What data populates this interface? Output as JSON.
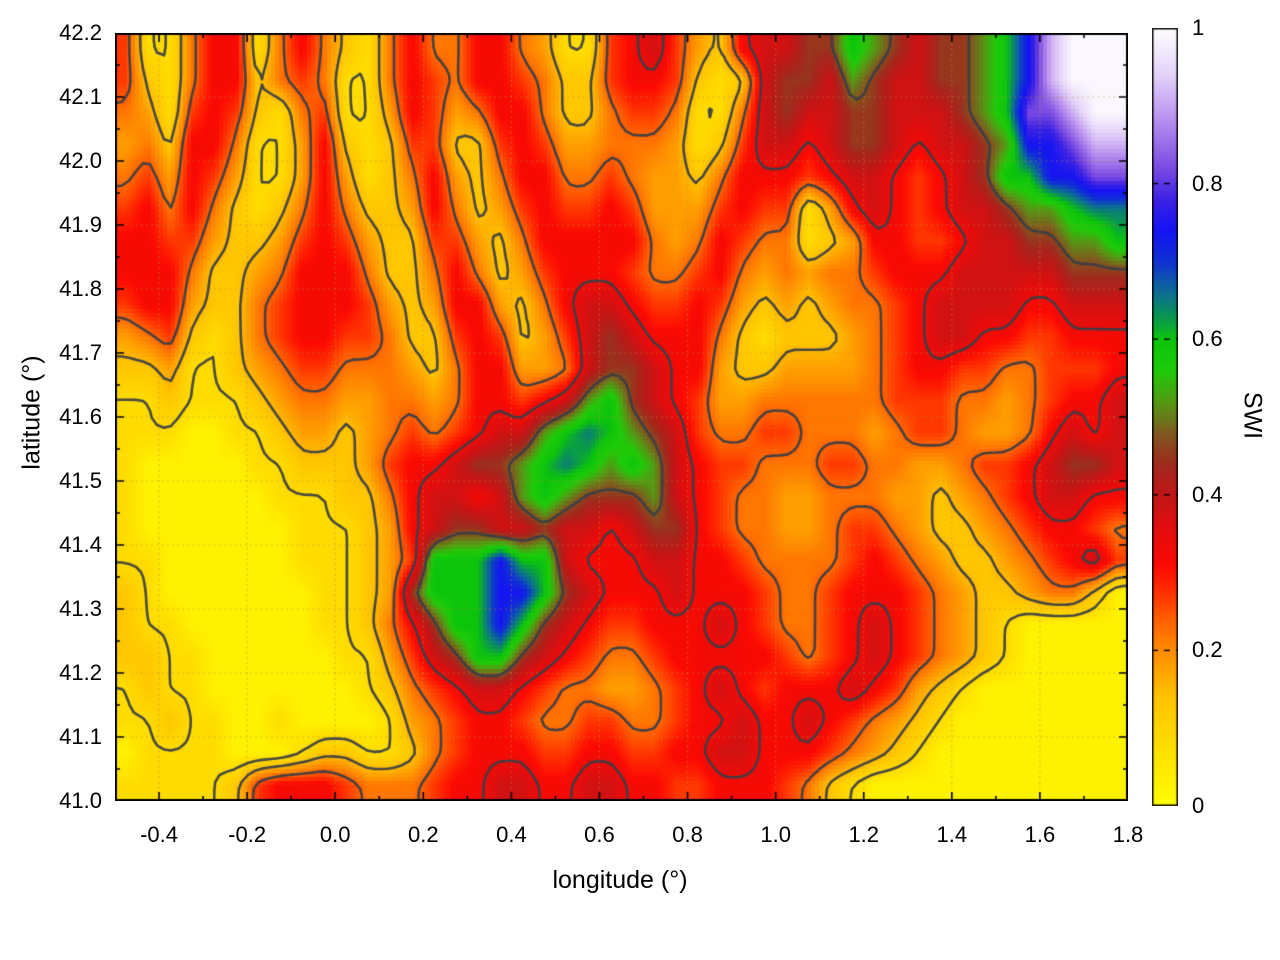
{
  "chart_data": {
    "type": "heatmap",
    "title": "",
    "xlabel": "longitude (°)",
    "ylabel": "latitude (°)",
    "colorbar_label": "SWI",
    "xlim": [
      -0.5,
      1.8
    ],
    "ylim": [
      41.0,
      42.2
    ],
    "zlim": [
      0,
      1
    ],
    "grid_on": true,
    "legend_position": "right-colorbar",
    "xticks": [
      {
        "v": -0.4,
        "label": "-0.4"
      },
      {
        "v": -0.2,
        "label": "-0.2"
      },
      {
        "v": 0.0,
        "label": "0.0"
      },
      {
        "v": 0.2,
        "label": "0.2"
      },
      {
        "v": 0.4,
        "label": "0.4"
      },
      {
        "v": 0.6,
        "label": "0.6"
      },
      {
        "v": 0.8,
        "label": "0.8"
      },
      {
        "v": 1.0,
        "label": "1.0"
      },
      {
        "v": 1.2,
        "label": "1.2"
      },
      {
        "v": 1.4,
        "label": "1.4"
      },
      {
        "v": 1.6,
        "label": "1.6"
      },
      {
        "v": 1.8,
        "label": "1.8"
      }
    ],
    "x_minor_step": 0.1,
    "yticks": [
      {
        "v": 41.0,
        "label": "41.0"
      },
      {
        "v": 41.1,
        "label": "41.1"
      },
      {
        "v": 41.2,
        "label": "41.2"
      },
      {
        "v": 41.3,
        "label": "41.3"
      },
      {
        "v": 41.4,
        "label": "41.4"
      },
      {
        "v": 41.5,
        "label": "41.5"
      },
      {
        "v": 41.6,
        "label": "41.6"
      },
      {
        "v": 41.7,
        "label": "41.7"
      },
      {
        "v": 41.8,
        "label": "41.8"
      },
      {
        "v": 41.9,
        "label": "41.9"
      },
      {
        "v": 42.0,
        "label": "42.0"
      },
      {
        "v": 42.1,
        "label": "42.1"
      },
      {
        "v": 42.2,
        "label": "42.2"
      }
    ],
    "y_minor_step": 0.05,
    "cbticks": [
      {
        "v": 0,
        "label": "0"
      },
      {
        "v": 0.2,
        "label": "0.2"
      },
      {
        "v": 0.4,
        "label": "0.4"
      },
      {
        "v": 0.6,
        "label": "0.6"
      },
      {
        "v": 0.8,
        "label": "0.8"
      },
      {
        "v": 1,
        "label": "1"
      }
    ],
    "palette": [
      [
        0.0,
        "#ffff00"
      ],
      [
        0.08,
        "#ffdc00"
      ],
      [
        0.14,
        "#ffc300"
      ],
      [
        0.2,
        "#ff8c00"
      ],
      [
        0.24,
        "#ff6000"
      ],
      [
        0.28,
        "#ff2a00"
      ],
      [
        0.31,
        "#fb0a02"
      ],
      [
        0.36,
        "#e00e0e"
      ],
      [
        0.4,
        "#c01616"
      ],
      [
        0.44,
        "#a02a1e"
      ],
      [
        0.48,
        "#7e5a1e"
      ],
      [
        0.52,
        "#549a14"
      ],
      [
        0.56,
        "#1ecb08"
      ],
      [
        0.6,
        "#0cc40c"
      ],
      [
        0.63,
        "#0a9552"
      ],
      [
        0.66,
        "#0c6e93"
      ],
      [
        0.7,
        "#0f32d2"
      ],
      [
        0.74,
        "#1414f2"
      ],
      [
        0.78,
        "#3c22e4"
      ],
      [
        0.82,
        "#7a4ae2"
      ],
      [
        0.88,
        "#b68cee"
      ],
      [
        0.94,
        "#e3d2f8"
      ],
      [
        1.0,
        "#ffffff"
      ]
    ],
    "contour_levels": [
      0.085,
      0.15,
      0.235,
      0.335,
      0.47
    ],
    "contour_color": "#3a3e46",
    "grid_color": "rgba(195,145,55,0.6)",
    "swi_grid": {
      "description": "SWI field sampled on a 46x24 lon/lat grid; each character encodes a value",
      "lon0": -0.475,
      "dlon": 0.05,
      "lat0": 42.175,
      "dlat": -0.05,
      "ncols": 46,
      "nrows": 24,
      "encoding": {
        "a": 0.03,
        "b": 0.08,
        "c": 0.13,
        "d": 0.18,
        "e": 0.22,
        "f": 0.27,
        "g": 0.32,
        "h": 0.38,
        "i": 0.45,
        "j": 0.52,
        "k": 0.6,
        "l": 0.65,
        "m": 0.74,
        "n": 0.82,
        "o": 0.91,
        "p": 0.99
      },
      "rows": [
        "fbbeggbegecbegeeggedbbfghfdcghhiikjihiijkmoppp",
        "fcbeggcefebbegfeggfeccfggfcbchiihjihhiijkmoppp",
        "edbfgfcbefbbdgfdeggecceffebbehihhiihhhijknnopp",
        "decggebbdgcbcffccfgfddeeedbcfhhghiihghhijmmnoo",
        "efdgfdbbdgdbcegdceggeefeddcegggfghhgfghikkmmnn",
        "fgegecbcegeccdgecdfgffgfdddfgffbdghgfghhijjkll",
        "ggffdccdfgfdccffdcegggggedegfeebcdggffghhiijjk",
        "gggeccdegggeccegecdfgggfeefgededeefggghhhhhiii",
        "fggdccefgggfdcdggdceghhgffgfdcdcdeefghhhhgghhh",
        "defcbcefggffeccfgfcdfhihgggecbcccdefghhggffggg",
        "ccdbbcdeffeeedceggddehiihggdccddddefggffeefffg",
        "bbcbbbcdeeddeedeggfghjkihgfddeeeeeefffeedefggh",
        "bbbaabbcddcdefefghhjklkjihfeeffeeedeffeddeghgh",
        "baaaaabbcccdfgghiijklkjkjhgffeeeffeeddeffghiih",
        "baaaaaabbbcceghhghjkjiiijhgfeeddeeeddcdefghhgg",
        "baaaaaaabbbcdghiihhihhghiigfeeddeffedccdefggfe",
        "bbaaaaaabbbcdfkkkmkkhggghhggfeeeefgfedccdefghf",
        "cbaaaaaaabbcdikkkmmkihggghgggfeefgggfedccdeeca",
        "cbbaaaaaabbcegikkmkihgffggghgfeefghgfedcbaaaaa",
        "ccbbaaaaaabbdfhikkihgfeefgggggfefghgfedcbaaaaa",
        "bcbbaaaaaaabcefghhgfeeddefghgfggghgfdcbaaaaaaa",
        "bbcbbaabaaaabdefggfeeffeefgghgghgfedcbaaaaaaaa",
        "abbbbaaabccbbcefgggffggffgghhgggfedcbaaaaaaaaa",
        "bbbbbcfgggfeeefgghhgghhggffgggfecbaaaaaaaaaaaa"
      ]
    }
  }
}
